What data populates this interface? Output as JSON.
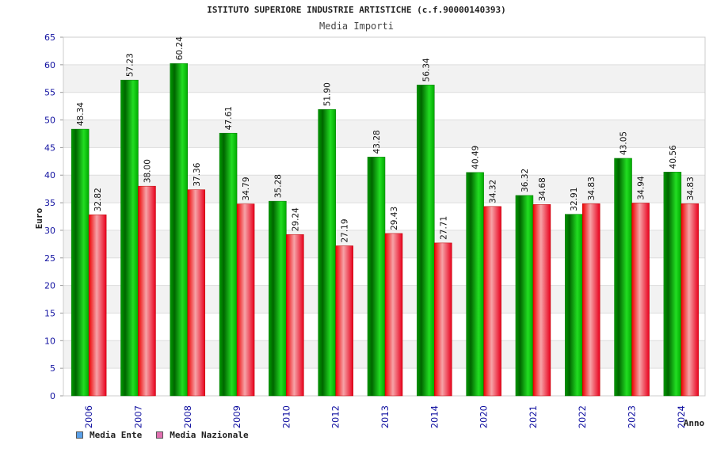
{
  "chart_data": {
    "type": "bar",
    "title": "ISTITUTO SUPERIORE INDUSTRIE ARTISTICHE (c.f.90000140393)",
    "subtitle": "Media Importi",
    "ylabel": "Euro",
    "xlabel": "Anno",
    "ylim": [
      0,
      65
    ],
    "yticks": [
      0,
      5,
      10,
      15,
      20,
      25,
      30,
      35,
      40,
      45,
      50,
      55,
      60,
      65
    ],
    "categories": [
      "2006",
      "2007",
      "2008",
      "2009",
      "2010",
      "2012",
      "2013",
      "2014",
      "2020",
      "2021",
      "2022",
      "2023",
      "2024"
    ],
    "series": [
      {
        "name": "Media Ente",
        "color": "#00aa00",
        "legend_color": "#5aa0e8",
        "values": [
          48.34,
          57.23,
          60.24,
          47.61,
          35.28,
          51.9,
          43.28,
          56.34,
          40.49,
          36.32,
          32.91,
          43.05,
          40.56
        ],
        "labels": [
          "48.34",
          "57.23",
          "60.24",
          "47.61",
          "35.28",
          "51.90",
          "43.28",
          "56.34",
          "40.49",
          "36.32",
          "32.91",
          "43.05",
          "40.56"
        ]
      },
      {
        "name": "Media Nazionale",
        "color": "#e8001c",
        "legend_color": "#e070b0",
        "values": [
          32.82,
          38.0,
          37.36,
          34.79,
          29.24,
          27.19,
          29.43,
          27.71,
          34.32,
          34.68,
          34.83,
          34.94,
          34.83
        ],
        "labels": [
          "32.82",
          "38.00",
          "37.36",
          "34.79",
          "29.24",
          "27.19",
          "29.43",
          "27.71",
          "34.32",
          "34.68",
          "34.83",
          "34.94",
          "34.83"
        ]
      }
    ],
    "legend": "bottom-left"
  }
}
